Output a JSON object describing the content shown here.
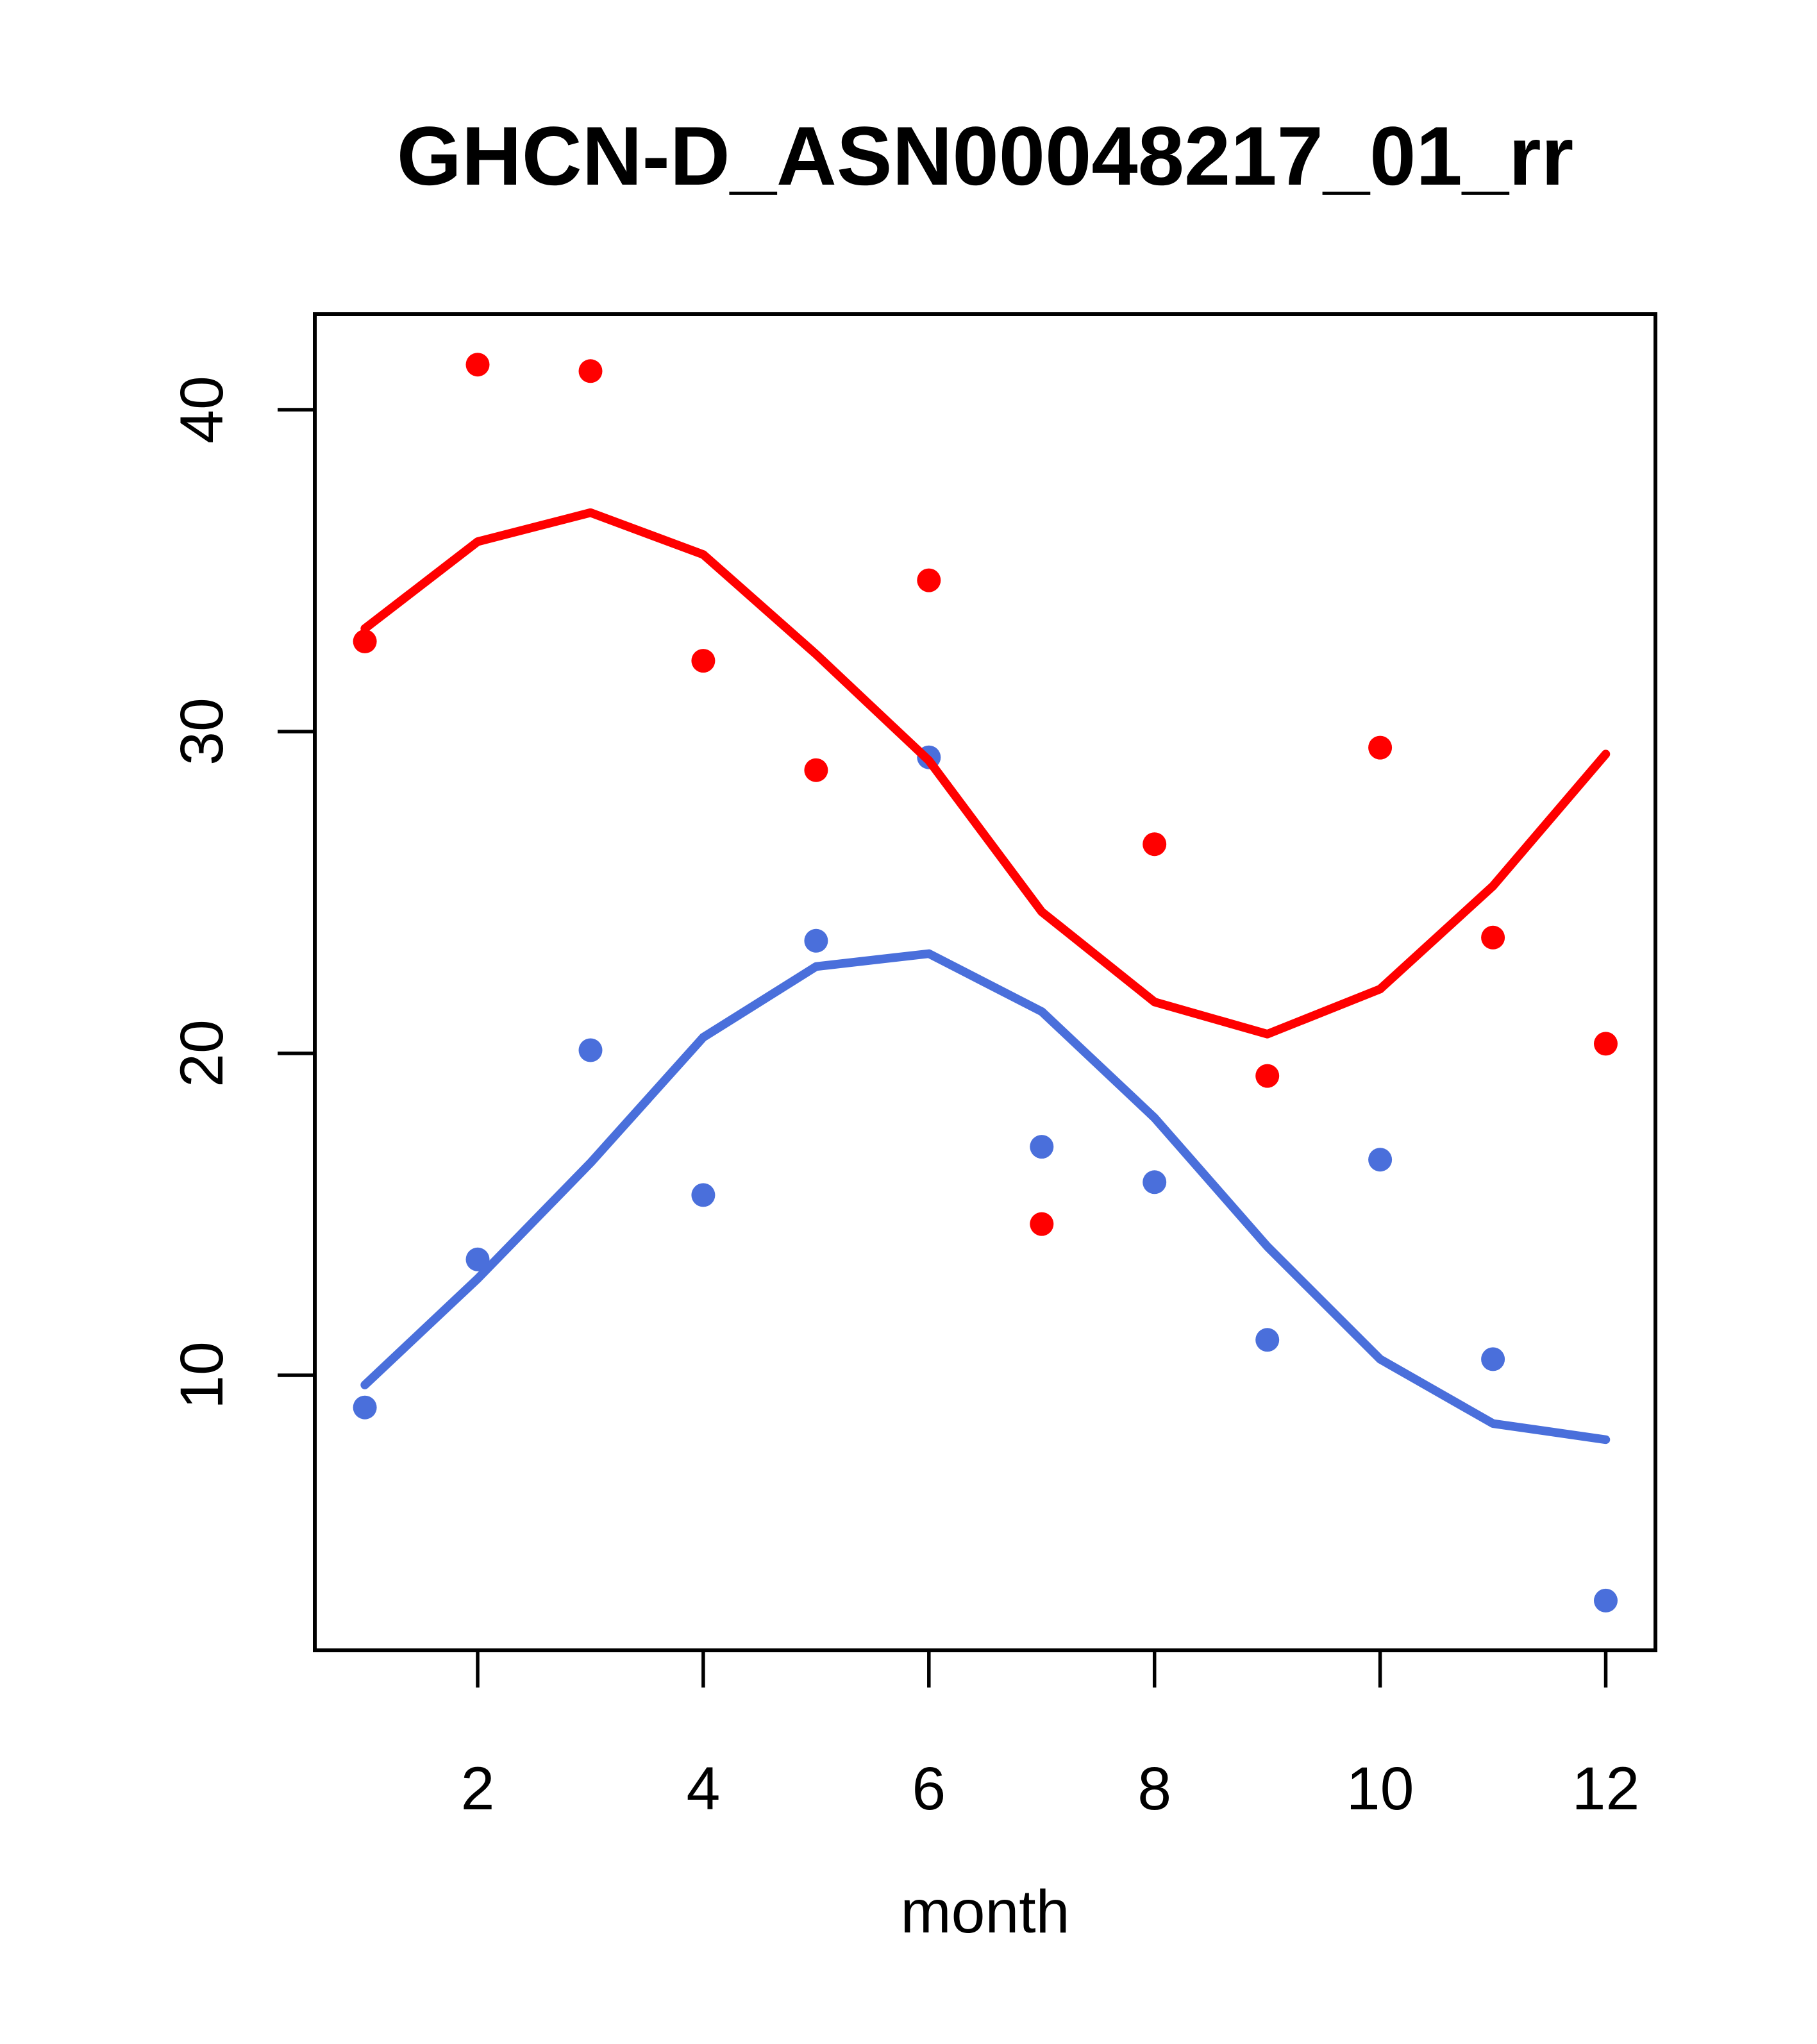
{
  "page": {
    "background": "#ffffff"
  },
  "chart_data": {
    "type": "scatter",
    "title": "GHCN-D_ASN00048217_01_rr",
    "xlabel": "month",
    "ylabel": "",
    "x_ticks": [
      2,
      4,
      6,
      8,
      10,
      12
    ],
    "y_ticks": [
      10,
      20,
      30,
      40
    ],
    "xlim": [
      0.56,
      12.45
    ],
    "ylim": [
      1.5,
      43.0
    ],
    "grid": false,
    "legend": null,
    "months": [
      1,
      2,
      3,
      4,
      5,
      6,
      7,
      8,
      9,
      10,
      11,
      12
    ],
    "colors": {
      "series1": "#ff0000",
      "series2": "#4a6fdb",
      "axis": "#000000"
    },
    "series": [
      {
        "name": "red-points",
        "kind": "points",
        "color": "#ff0000",
        "values": [
          32.8,
          41.4,
          41.2,
          32.2,
          28.8,
          34.7,
          14.7,
          26.5,
          19.3,
          29.5,
          23.6,
          20.3
        ]
      },
      {
        "name": "blue-points",
        "kind": "points",
        "color": "#4a6fdb",
        "values": [
          9.0,
          13.6,
          20.1,
          15.6,
          23.5,
          29.2,
          17.1,
          16.0,
          11.1,
          16.7,
          10.5,
          3.0
        ]
      },
      {
        "name": "red-trend",
        "kind": "line",
        "color": "#ff0000",
        "values": [
          33.2,
          35.9,
          36.8,
          35.5,
          32.4,
          29.1,
          24.4,
          21.6,
          20.6,
          22.0,
          25.2,
          29.3
        ]
      },
      {
        "name": "blue-trend",
        "kind": "line",
        "color": "#4a6fdb",
        "values": [
          9.7,
          13.0,
          16.6,
          20.5,
          22.7,
          23.1,
          21.3,
          18.0,
          14.0,
          10.5,
          8.5,
          8.0
        ]
      }
    ]
  }
}
